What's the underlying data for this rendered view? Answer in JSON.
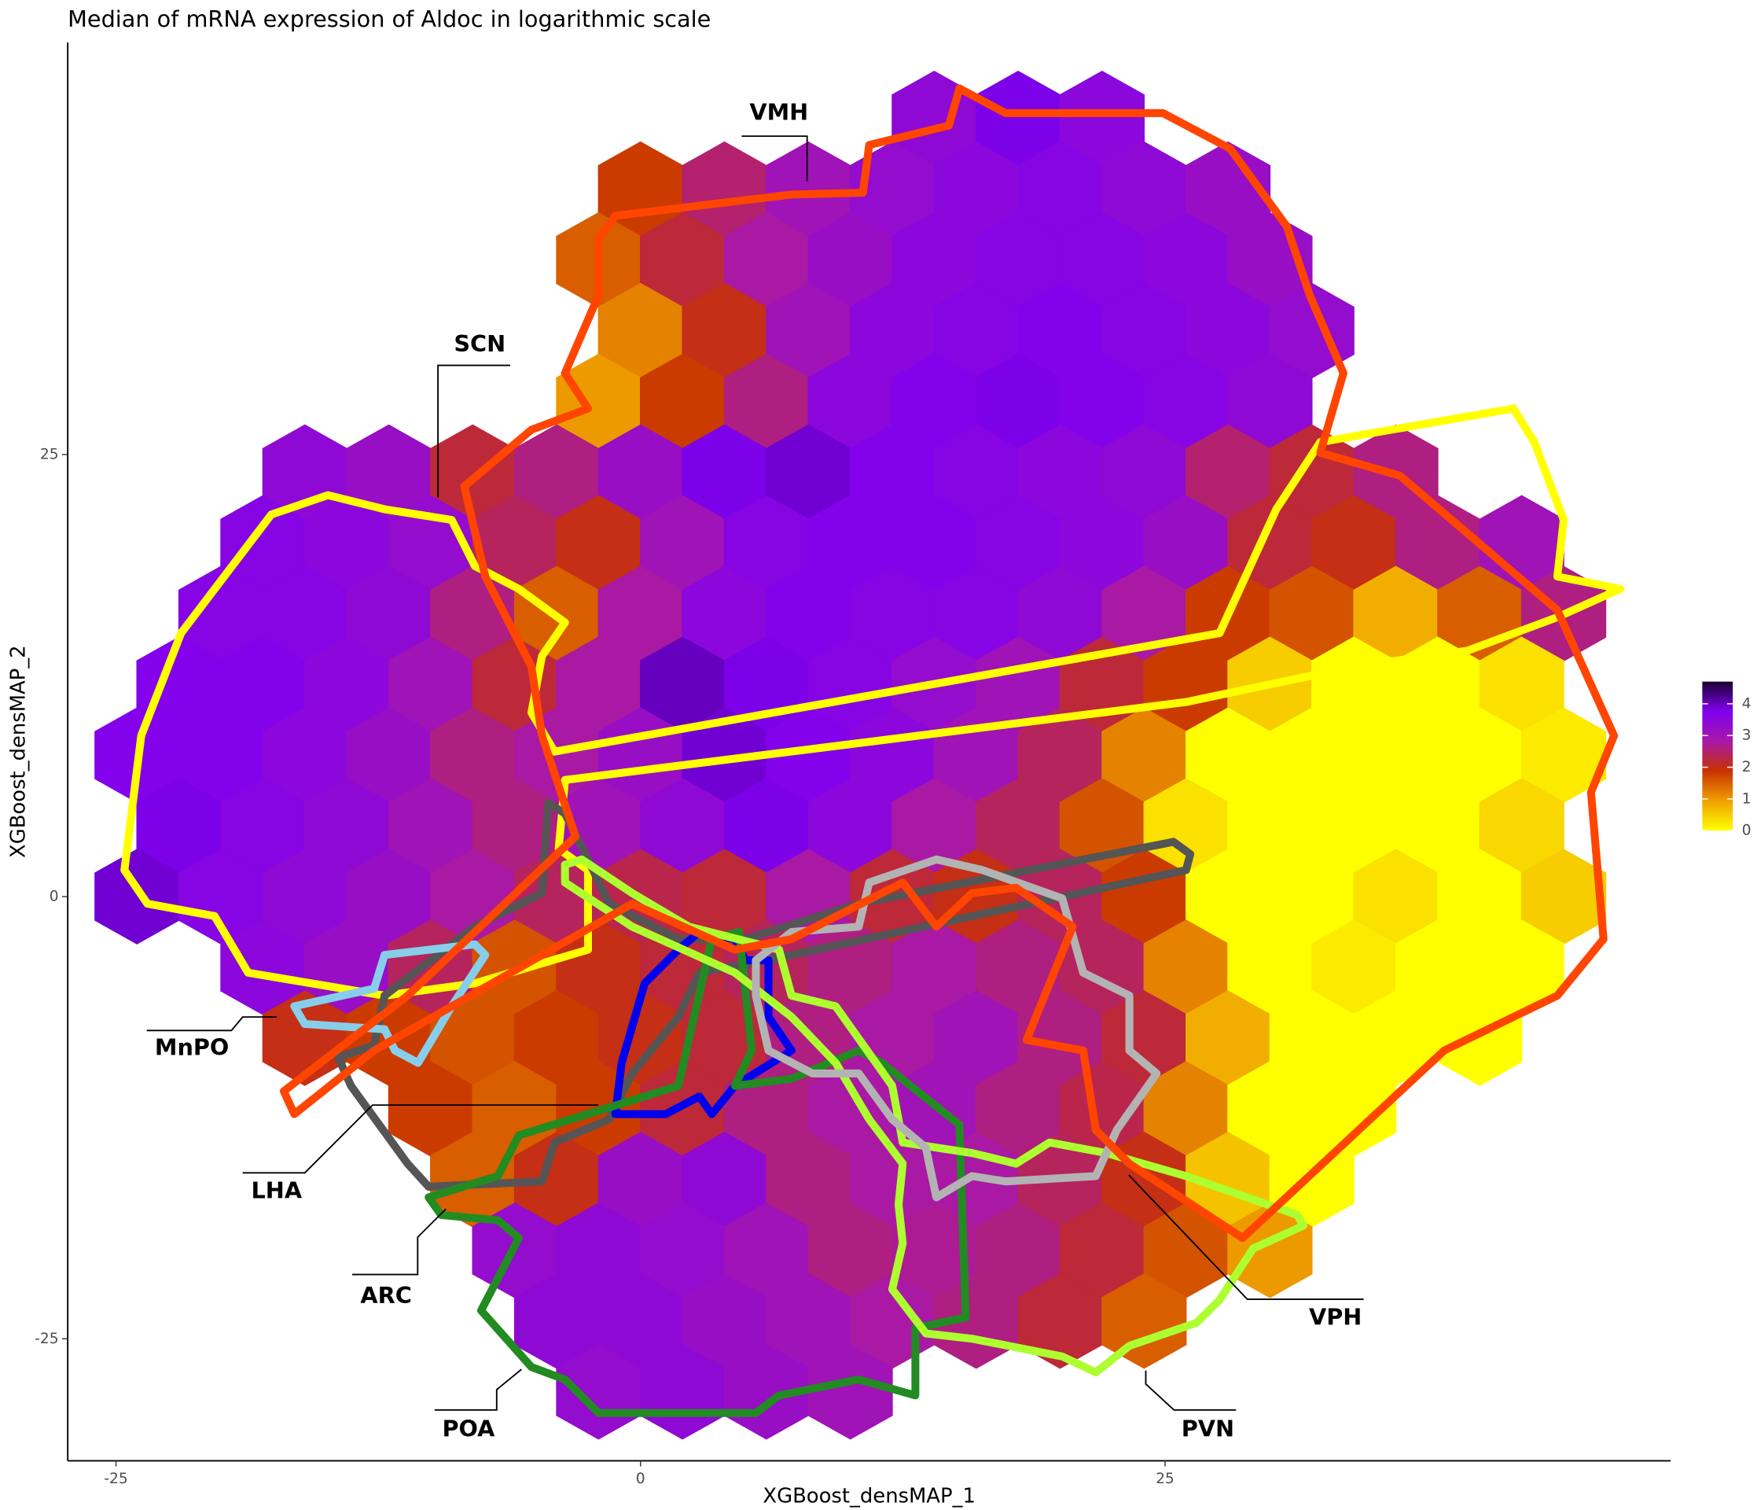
{
  "chart_data": {
    "type": "hexbin",
    "title": "Median of mRNA expression of Aldoc in logarithmic scale",
    "xlabel": "XGBoost_densMAP_1",
    "ylabel": "XGBoost_densMAP_2",
    "xlim": [
      -27.3,
      49.1
    ],
    "ylim": [
      -31.9,
      48.3
    ],
    "xticks": [
      -25,
      0,
      25
    ],
    "yticks": [
      -25,
      0,
      25
    ],
    "colorbar": {
      "lim": [
        0,
        4.7
      ],
      "ticks": [
        0,
        1,
        2,
        3,
        4
      ],
      "colors": [
        "#ffff00",
        "#f0a000",
        "#c83200",
        "#a818a8",
        "#8000f0",
        "#1a0030"
      ]
    },
    "hex_rows": [
      {
        "y": 44,
        "x": [
          14,
          18,
          22
        ],
        "values": [
          3.4,
          3.8,
          3.5
        ]
      },
      {
        "y": 40,
        "x": [
          0,
          4,
          8,
          12,
          16,
          20,
          24,
          28
        ],
        "values": [
          1.8,
          2.5,
          3.0,
          3.3,
          3.5,
          3.6,
          3.4,
          3.2
        ]
      },
      {
        "y": 36,
        "x": [
          -2,
          2,
          6,
          10,
          14,
          18,
          22,
          26,
          30
        ],
        "values": [
          1.5,
          2.2,
          2.8,
          3.2,
          3.5,
          3.6,
          3.6,
          3.5,
          3.2
        ]
      },
      {
        "y": 32,
        "x": [
          0,
          4,
          8,
          12,
          16,
          20,
          24,
          28,
          32
        ],
        "values": [
          1.2,
          2.0,
          3.0,
          3.5,
          3.6,
          3.7,
          3.6,
          3.5,
          3.3
        ]
      },
      {
        "y": 28,
        "x": [
          -2,
          2,
          6,
          10,
          14,
          18,
          22,
          26,
          30
        ],
        "values": [
          1.0,
          1.8,
          2.6,
          3.5,
          3.7,
          3.8,
          3.7,
          3.6,
          3.4
        ]
      },
      {
        "y": 24,
        "x": [
          -16,
          -12,
          -8,
          -4,
          0,
          4,
          8,
          12,
          16,
          20,
          24,
          28,
          32,
          36
        ],
        "values": [
          3.4,
          3.2,
          2.2,
          2.6,
          3.2,
          3.8,
          3.9,
          3.7,
          3.6,
          3.5,
          3.4,
          2.5,
          2.2,
          2.6
        ]
      },
      {
        "y": 20,
        "x": [
          -18,
          -14,
          -10,
          -6,
          -2,
          2,
          6,
          10,
          14,
          18,
          22,
          26,
          30,
          34,
          38,
          42
        ],
        "values": [
          3.6,
          3.5,
          3.3,
          2.4,
          2.0,
          3.0,
          3.6,
          3.7,
          3.7,
          3.6,
          3.5,
          3.2,
          2.2,
          2.0,
          2.6,
          3.0
        ]
      },
      {
        "y": 16,
        "x": [
          -20,
          -16,
          -12,
          -8,
          -4,
          0,
          4,
          8,
          12,
          16,
          20,
          24,
          28,
          32,
          36,
          40,
          44
        ],
        "values": [
          3.6,
          3.6,
          3.4,
          2.6,
          1.5,
          2.8,
          3.5,
          3.7,
          3.6,
          3.6,
          3.4,
          2.8,
          1.8,
          1.6,
          0.8,
          1.5,
          2.6
        ]
      },
      {
        "y": 12,
        "x": [
          -22,
          -18,
          -14,
          -10,
          -6,
          -2,
          2,
          6,
          10,
          14,
          18,
          22,
          26,
          30,
          34,
          38,
          42
        ],
        "values": [
          3.7,
          3.7,
          3.5,
          3.0,
          2.2,
          2.8,
          4.0,
          3.8,
          3.6,
          3.3,
          3.0,
          2.2,
          1.8,
          0.5,
          0.0,
          0.0,
          0.3
        ]
      },
      {
        "y": 8,
        "x": [
          -24,
          -20,
          -16,
          -12,
          -8,
          -4,
          0,
          4,
          8,
          12,
          16,
          20,
          24,
          28,
          32,
          36,
          40,
          44
        ],
        "values": [
          3.7,
          3.7,
          3.5,
          3.2,
          2.6,
          2.8,
          3.2,
          3.9,
          3.7,
          3.5,
          3.0,
          2.4,
          1.2,
          0.0,
          0.0,
          0.0,
          0.0,
          0.2
        ]
      },
      {
        "y": 4,
        "x": [
          -22,
          -18,
          -14,
          -10,
          -6,
          -2,
          2,
          6,
          10,
          14,
          18,
          22,
          26,
          30,
          34,
          38,
          42
        ],
        "values": [
          3.8,
          3.6,
          3.4,
          3.0,
          2.6,
          3.0,
          3.4,
          3.8,
          3.5,
          2.8,
          2.4,
          1.6,
          0.3,
          0.0,
          0.0,
          0.0,
          0.4
        ]
      },
      {
        "y": 0,
        "x": [
          -24,
          -20,
          -16,
          -12,
          -8,
          -4,
          0,
          4,
          8,
          12,
          16,
          20,
          24,
          28,
          32,
          36,
          40,
          44
        ],
        "values": [
          3.9,
          3.6,
          3.4,
          3.2,
          2.8,
          2.4,
          2.3,
          2.2,
          2.8,
          2.2,
          2.0,
          2.4,
          1.8,
          0.0,
          0.0,
          0.3,
          0.0,
          0.5
        ]
      },
      {
        "y": -4,
        "x": [
          -18,
          -14,
          -10,
          -6,
          -2,
          2,
          6,
          10,
          14,
          18,
          22,
          26,
          30,
          34,
          38,
          42
        ],
        "values": [
          3.5,
          3.2,
          2.4,
          1.6,
          2.0,
          2.2,
          2.4,
          2.6,
          2.8,
          2.6,
          2.4,
          1.2,
          0.0,
          0.2,
          0.0,
          0.0
        ]
      },
      {
        "y": -8,
        "x": [
          -16,
          -12,
          -8,
          -4,
          0,
          4,
          8,
          12,
          16,
          20,
          24,
          28,
          32,
          36,
          40
        ],
        "values": [
          2.0,
          1.8,
          1.6,
          1.8,
          2.0,
          2.2,
          2.6,
          2.8,
          3.0,
          2.6,
          2.2,
          0.8,
          0.0,
          0.0,
          0.0
        ]
      },
      {
        "y": -12,
        "x": [
          -10,
          -6,
          -2,
          2,
          6,
          10,
          14,
          18,
          22,
          26,
          30,
          34
        ],
        "values": [
          1.8,
          1.5,
          1.8,
          2.2,
          2.6,
          2.8,
          3.0,
          2.6,
          2.3,
          1.2,
          0.0,
          0.0
        ]
      },
      {
        "y": -16,
        "x": [
          -8,
          -4,
          0,
          4,
          8,
          12,
          16,
          20,
          24,
          28,
          32
        ],
        "values": [
          1.5,
          2.0,
          3.2,
          3.4,
          2.6,
          2.8,
          2.8,
          2.4,
          2.0,
          0.6,
          0.0
        ]
      },
      {
        "y": -20,
        "x": [
          -6,
          -2,
          2,
          6,
          10,
          14,
          18,
          22,
          26,
          30
        ],
        "values": [
          3.3,
          3.4,
          3.3,
          3.0,
          2.6,
          2.7,
          2.6,
          2.2,
          1.6,
          1.0
        ]
      },
      {
        "y": -24,
        "x": [
          -4,
          0,
          4,
          8,
          12,
          16,
          20,
          24
        ],
        "values": [
          3.4,
          3.4,
          3.2,
          3.0,
          2.8,
          2.6,
          2.2,
          1.5
        ]
      },
      {
        "y": -28,
        "x": [
          -2,
          2,
          6,
          10
        ],
        "values": [
          3.3,
          3.4,
          3.2,
          3.0
        ]
      }
    ],
    "outlines": [
      {
        "color": "#ffff00",
        "x": [
          -24.6,
          -23.8,
          -21.9,
          -17.6,
          -14.9,
          -12.2,
          -9.0,
          -7.9,
          -5.8,
          -3.6,
          -4.7,
          -5.2,
          -4.1,
          27.6,
          30.3,
          32.4,
          41.6,
          42.6,
          44.0,
          43.7,
          46.7,
          43.7,
          39.4,
          34.0,
          26.0,
          -3.6,
          -3.9,
          -2.5,
          -2.5,
          -7.9,
          -12.2,
          -18.7,
          -20.3,
          -23.5
        ],
        "y": [
          1.5,
          9.1,
          14.9,
          21.6,
          22.7,
          21.9,
          21.3,
          18.7,
          17.4,
          15.5,
          13.6,
          10.4,
          8.2,
          14.9,
          21.9,
          25.7,
          27.6,
          25.7,
          21.3,
          18.1,
          17.4,
          15.8,
          13.9,
          13.0,
          11.0,
          6.6,
          2.7,
          1.5,
          -3.0,
          -4.9,
          -5.6,
          -4.3,
          -1.1,
          -0.4
        ]
      },
      {
        "color": "#555555",
        "x": [
          -4.4,
          -3.6,
          -2.5,
          -1.5,
          1.8,
          5.0,
          10.4,
          25.4,
          26.2,
          26.0,
          7.2,
          2.8,
          1.8,
          -0.4,
          -1.5,
          -4.1,
          -4.7,
          -10.1,
          -11.1,
          -13.8,
          -14.4,
          -12.7,
          -12.2,
          -7.9,
          -4.7
        ],
        "y": [
          5.3,
          4.7,
          2.1,
          -0.4,
          -2.4,
          -2.4,
          -0.4,
          3.1,
          2.4,
          1.5,
          -3.3,
          -4.3,
          -6.8,
          -10.0,
          -12.6,
          -13.9,
          -16.1,
          -16.4,
          -15.1,
          -10.7,
          -9.1,
          -8.4,
          -5.6,
          -1.7,
          0.2
        ]
      },
      {
        "color": "#87ceeb",
        "x": [
          -16.5,
          -12.7,
          -12.2,
          -7.9,
          -7.4,
          -9.0,
          -10.6,
          -11.7,
          -12.2,
          -16.0
        ],
        "y": [
          -6.2,
          -5.2,
          -3.3,
          -2.7,
          -3.3,
          -6.2,
          -9.4,
          -8.7,
          -7.5,
          -7.2
        ]
      },
      {
        "color": "#0000ee",
        "x": [
          -1.2,
          -0.9,
          0.2,
          1.8,
          2.8,
          4.5,
          5.0,
          6.1,
          6.1,
          7.2,
          4.5,
          3.4,
          2.8,
          1.2
        ],
        "y": [
          -12.3,
          -9.4,
          -4.9,
          -3.0,
          -2.0,
          -2.4,
          -3.6,
          -3.6,
          -6.8,
          -8.7,
          -10.7,
          -12.3,
          -11.3,
          -12.3
        ]
      },
      {
        "color": "#228b22",
        "x": [
          -10.1,
          -6.8,
          -5.8,
          -2.5,
          1.8,
          3.4,
          4.7,
          5.3,
          4.5,
          7.2,
          10.4,
          11.5,
          15.2,
          15.5,
          13.1,
          13.1,
          10.4,
          6.6,
          5.5,
          -2.0,
          -3.6,
          -5.2,
          -7.6,
          -5.8,
          -6.8,
          -9.5
        ],
        "y": [
          -17.0,
          -15.8,
          -13.5,
          -12.3,
          -10.7,
          -2.4,
          -2.0,
          -8.7,
          -10.7,
          -10.3,
          -8.7,
          -9.4,
          -12.9,
          -23.8,
          -24.4,
          -28.2,
          -27.3,
          -28.2,
          -29.2,
          -29.2,
          -27.3,
          -26.6,
          -23.4,
          -19.3,
          -18.3,
          -18.0
        ]
      },
      {
        "color": "#adff2f",
        "x": [
          -3.6,
          -2.8,
          -0.4,
          2.3,
          6.6,
          7.2,
          9.3,
          12.0,
          12.5,
          15.8,
          17.9,
          19.5,
          22.2,
          26.0,
          31.3,
          31.6,
          29.2,
          27.6,
          26.5,
          23.3,
          21.7,
          20.1,
          15.8,
          13.6,
          12.0,
          12.5,
          12.3,
          12.5,
          10.9,
          9.3,
          7.2,
          4.5,
          -0.4,
          -3.6
        ],
        "y": [
          1.8,
          2.1,
          0.2,
          -1.7,
          -3.0,
          -5.6,
          -6.2,
          -10.7,
          -13.9,
          -14.5,
          -15.1,
          -13.9,
          -14.5,
          -15.8,
          -18.0,
          -18.6,
          -19.9,
          -22.8,
          -24.1,
          -25.4,
          -26.9,
          -26.0,
          -25.0,
          -24.7,
          -22.2,
          -19.6,
          -17.4,
          -15.1,
          -12.6,
          -9.4,
          -6.8,
          -4.3,
          -1.7,
          0.8
        ]
      },
      {
        "color": "#b3b3b3",
        "x": [
          5.5,
          5.5,
          7.2,
          10.4,
          10.9,
          14.1,
          16.3,
          20.1,
          21.1,
          23.3,
          23.3,
          24.6,
          22.7,
          21.7,
          17.4,
          15.8,
          14.1,
          13.6,
          12.0,
          10.4,
          8.2,
          6.1
        ],
        "y": [
          -5.6,
          -3.6,
          -2.0,
          -1.7,
          0.8,
          2.1,
          1.5,
          -0.1,
          -4.3,
          -5.6,
          -8.7,
          -10.0,
          -13.2,
          -15.8,
          -16.1,
          -15.8,
          -17.0,
          -14.2,
          -12.6,
          -10.0,
          -10.0,
          -8.7
        ]
      },
      {
        "color": "#ff4500",
        "x": [
          -2.0,
          -1.2,
          7.2,
          10.6,
          10.9,
          14.7,
          15.2,
          17.4,
          24.9,
          28.1,
          30.8,
          31.9,
          33.5,
          32.4,
          36.2,
          43.7,
          46.4,
          45.3,
          45.9,
          43.7,
          38.3,
          28.7,
          23.3,
          21.7,
          21.1,
          18.4,
          20.6,
          17.9,
          15.8,
          14.1,
          12.5,
          7.2,
          4.5,
          -0.4,
          -12.7,
          -16.5,
          -17.0,
          -11.1,
          -3.1,
          -4.7,
          -5.2,
          -7.4,
          -8.4,
          -5.2,
          -2.5,
          -3.6,
          -2.0
        ],
        "y": [
          37.2,
          38.5,
          39.7,
          39.8,
          42.5,
          43.6,
          45.7,
          44.3,
          44.3,
          42.3,
          37.9,
          34.0,
          29.6,
          25.1,
          23.8,
          16.2,
          9.1,
          5.9,
          -2.4,
          -5.6,
          -8.7,
          -19.3,
          -15.1,
          -13.2,
          -8.7,
          -8.1,
          -1.7,
          0.5,
          0.2,
          -1.7,
          0.8,
          -2.4,
          -3.0,
          -0.4,
          -8.7,
          -12.3,
          -11.0,
          -5.6,
          3.4,
          9.1,
          13.0,
          18.1,
          23.2,
          26.4,
          27.6,
          29.6,
          34.0
        ]
      }
    ],
    "annotations": [
      "VMH",
      "SCN",
      "MnPO",
      "LHA",
      "ARC",
      "POA",
      "PVN",
      "VPH"
    ]
  }
}
